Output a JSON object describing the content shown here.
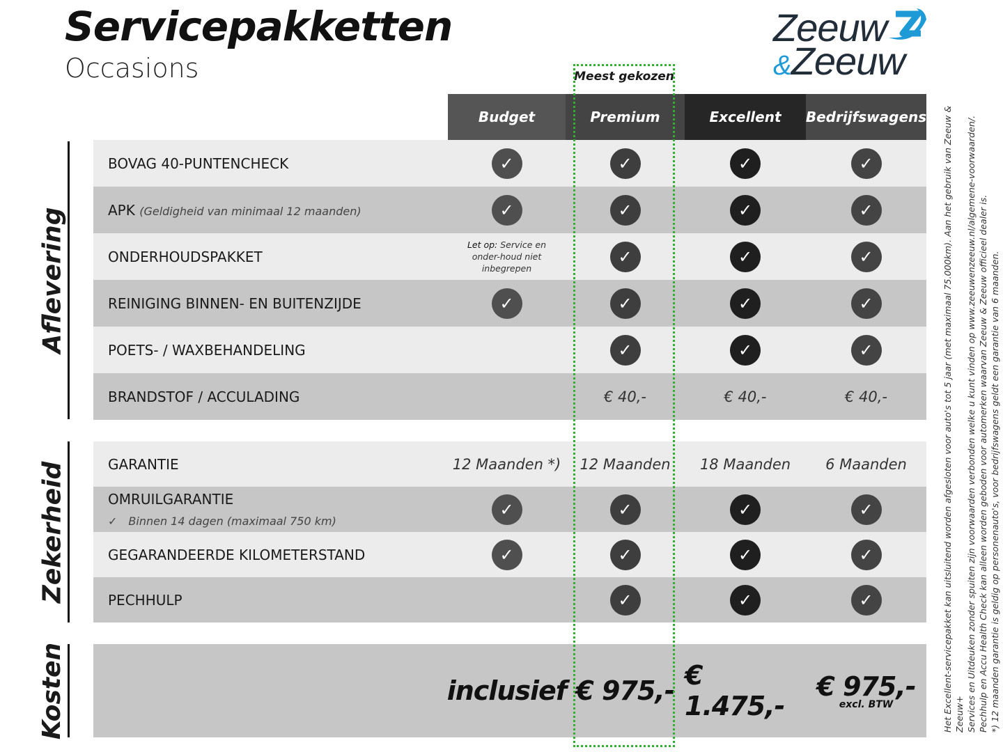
{
  "header": {
    "title": "Servicepakketten",
    "subtitle": "Occasions",
    "logo_text": "Zeeuw & Zeeuw",
    "popular_label": "Meest gekozen"
  },
  "colors": {
    "highlight": "#2fb02f",
    "logo_blue": "#1e9ad6",
    "logo_dark": "#222d3a"
  },
  "columns": [
    {
      "label": "Budget",
      "bg": "#555555",
      "check": "#4f4f4f"
    },
    {
      "label": "Premium",
      "bg": "#444444",
      "check": "#3e3e3e"
    },
    {
      "label": "Excellent",
      "bg": "#262626",
      "check": "#1f1f1f"
    },
    {
      "label": "Bedrijfswagens",
      "bg": "#484848",
      "check": "#444444"
    }
  ],
  "sections": [
    {
      "label": "Aflevering",
      "rows": [
        {
          "label": "BOVAG 40-PUNTENCHECK",
          "cells": [
            "check",
            "check",
            "check",
            "check"
          ]
        },
        {
          "label": "APK",
          "note": "(Geldigheid van minimaal 12 maanden)",
          "cells": [
            "check",
            "check",
            "check",
            "check"
          ]
        },
        {
          "label": "ONDERHOUDSPAKKET",
          "budget_note_bold": "Let op:",
          "budget_note": "Service en onder-houd niet inbegrepen",
          "cells": [
            "note",
            "check",
            "check",
            "check"
          ]
        },
        {
          "label": "REINIGING BINNEN- EN BUITENZIJDE",
          "cells": [
            "check",
            "check",
            "check",
            "check"
          ]
        },
        {
          "label": "POETS- / WAXBEHANDELING",
          "cells": [
            "",
            "check",
            "check",
            "check"
          ]
        },
        {
          "label": "BRANDSTOF / ACCULADING",
          "cells": [
            "",
            "€ 40,-",
            "€ 40,-",
            "€ 40,-"
          ]
        }
      ]
    },
    {
      "label": "Zekerheid",
      "rows": [
        {
          "label": "GARANTIE",
          "cells": [
            "12 Maanden *)",
            "12 Maanden",
            "18 Maanden",
            "6 Maanden"
          ]
        },
        {
          "label": "OMRUILGARANTIE",
          "sub": "Binnen 14 dagen (maximaal 750 km)",
          "sub_icon": "checkmark-icon",
          "cells": [
            "check",
            "check",
            "check",
            "check"
          ]
        },
        {
          "label": "GEGARANDEERDE KILOMETERSTAND",
          "cells": [
            "check",
            "check",
            "check",
            "check"
          ]
        },
        {
          "label": "PECHHULP",
          "cells": [
            "",
            "check",
            "check",
            "check"
          ]
        }
      ]
    },
    {
      "label": "Kosten",
      "prices": [
        "inclusief",
        "€ 975,-",
        "€ 1.475,-",
        "€ 975,-"
      ],
      "price_note": "excl. BTW"
    }
  ],
  "footnotes": [
    "Het Excellent-servicepakket kan uitsluitend worden afgesloten voor auto's tot 5 jaar (met maximaal 75.000km). Aan het gebruik van Zeeuw & Zeeuw+",
    "Services en Uitdeuken zonder spuiten zijn voorwaarden verbonden welke u kunt vinden op www.zeeuwenzeeuw.nl/algemene-voorwaarden/.",
    "Pechhulp en Accu Health Check kan alleen worden geboden voor automerken waarvan Zeeuw & Zeeuw officieel dealer is.",
    "*) 12 maanden garantie is geldig op personenauto's, voor bedrijfswagens geldt een garantie van 6 maanden."
  ]
}
